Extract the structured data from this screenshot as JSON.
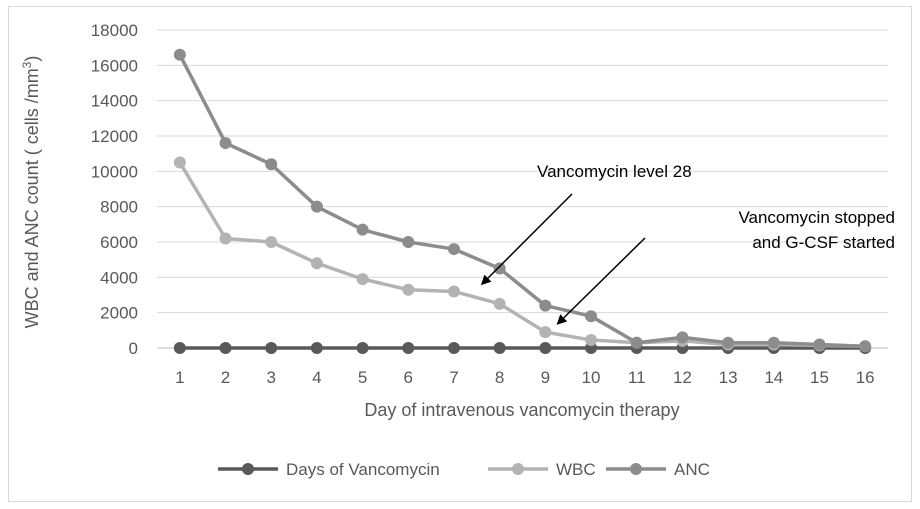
{
  "chart_data": {
    "type": "line",
    "xlabel": "Day of intravenous vancomycin therapy",
    "ylabel_main": "WBC and ANC count ( cells /mm",
    "ylabel_sup": "3",
    "ylabel_close": ")",
    "x": [
      1,
      2,
      3,
      4,
      5,
      6,
      7,
      8,
      9,
      10,
      11,
      12,
      13,
      14,
      15,
      16
    ],
    "ylim": [
      0,
      18000
    ],
    "yticks": [
      0,
      2000,
      4000,
      6000,
      8000,
      10000,
      12000,
      14000,
      16000,
      18000
    ],
    "grid": true,
    "legend_position": "bottom",
    "series": [
      {
        "name": "Days of Vancomycin",
        "color": "#595959",
        "values": [
          0,
          0,
          0,
          0,
          0,
          0,
          0,
          0,
          0,
          0,
          0,
          0,
          0,
          0,
          0,
          0
        ]
      },
      {
        "name": "WBC",
        "color": "#b3b3b3",
        "values": [
          10500,
          6200,
          6000,
          4800,
          3900,
          3300,
          3200,
          2500,
          900,
          450,
          300,
          400,
          200,
          200,
          150,
          100
        ]
      },
      {
        "name": "ANC",
        "color": "#8c8c8c",
        "values": [
          16600,
          11600,
          10400,
          8000,
          6700,
          6000,
          5600,
          4500,
          2400,
          1800,
          300,
          600,
          300,
          300,
          200,
          100
        ]
      }
    ],
    "annotations": [
      {
        "lines": [
          "Vancomycin level 28"
        ],
        "target_x": 8,
        "target_y": 3600
      },
      {
        "lines": [
          "Vancomycin stopped",
          "and G-CSF started"
        ],
        "target_x": 9,
        "target_y": 900
      }
    ]
  }
}
